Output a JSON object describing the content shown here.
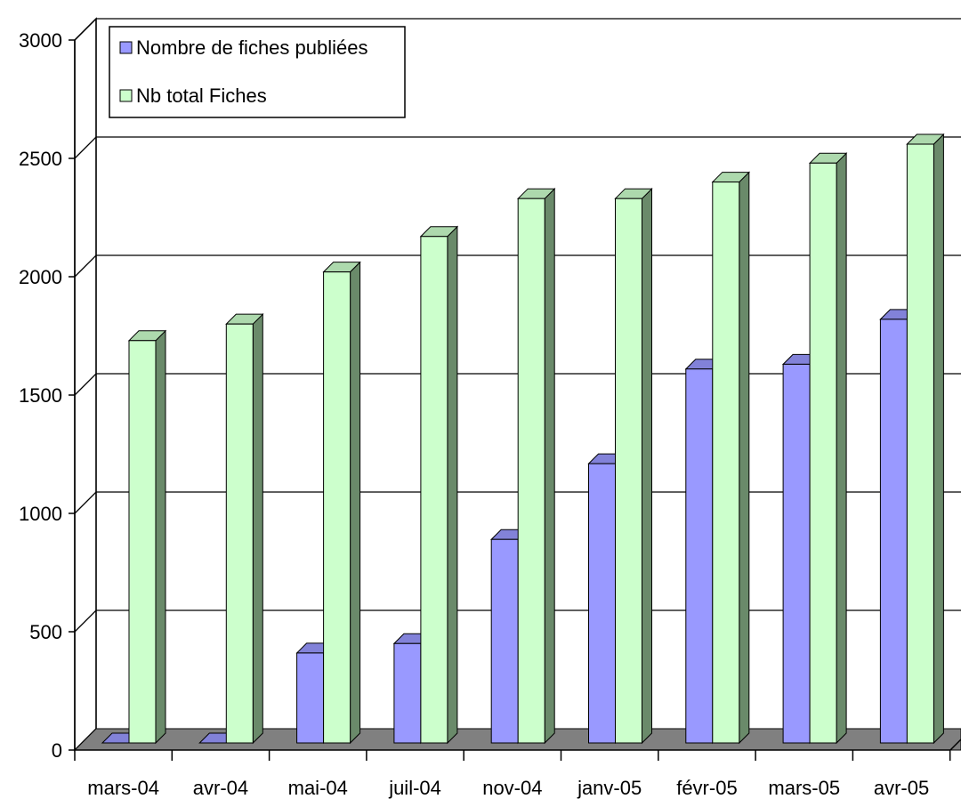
{
  "chart_data": {
    "type": "bar",
    "title": "",
    "xlabel": "",
    "ylabel": "",
    "ylim": [
      0,
      3000
    ],
    "yticks": [
      0,
      500,
      1000,
      1500,
      2000,
      2500,
      3000
    ],
    "categories": [
      "mars-04",
      "avr-04",
      "mai-04",
      "juil-04",
      "nov-04",
      "janv-05",
      "févr-05",
      "mars-05",
      "avr-05"
    ],
    "series": [
      {
        "name": "Nombre de fiches publiées",
        "color": "#9999ff",
        "values": [
          0,
          0,
          380,
          420,
          860,
          1180,
          1580,
          1600,
          1790
        ]
      },
      {
        "name": "Nb total Fiches",
        "color": "#ccffcc",
        "values": [
          1700,
          1770,
          1990,
          2140,
          2300,
          2300,
          2370,
          2450,
          2530
        ]
      }
    ],
    "grid": true,
    "three_d": true,
    "legend_position": "top-left"
  }
}
